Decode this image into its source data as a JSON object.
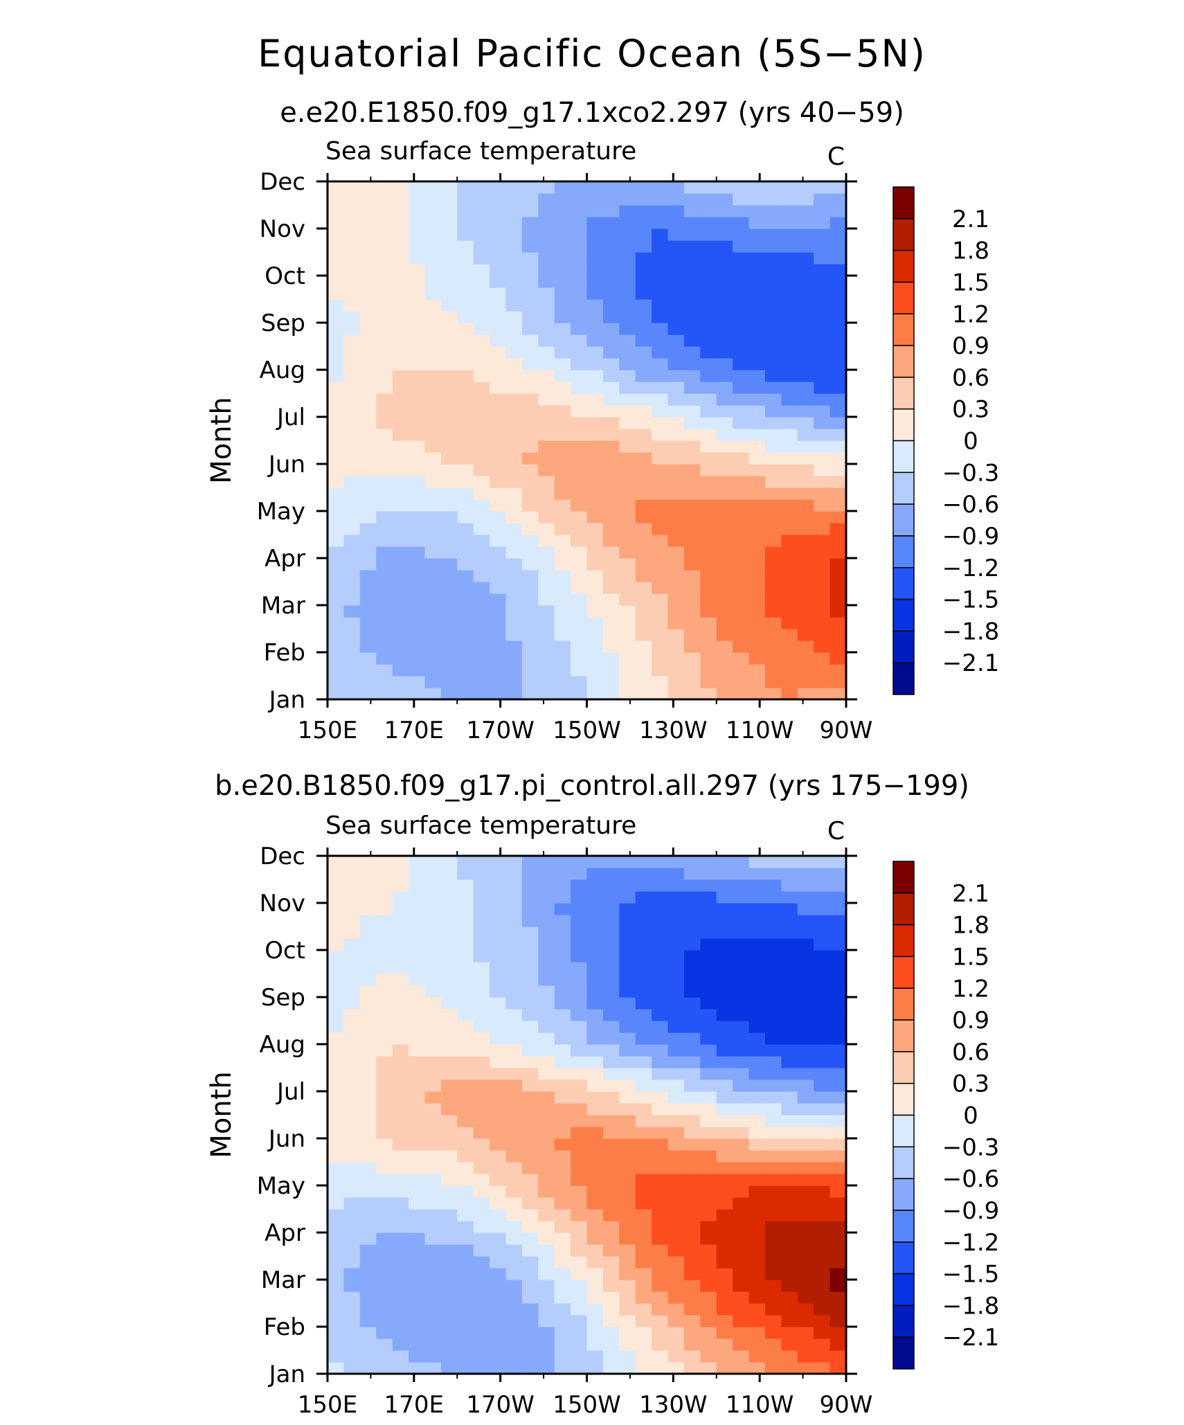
{
  "title": "Equatorial Pacific Ocean (5S−5N)",
  "chart_data": [
    {
      "type": "heatmap",
      "subtitle": "e.e20.E1850.f09_g17.1xco2.297 (yrs 40−59)",
      "left_label": "Sea surface temperature",
      "right_label": "C",
      "ylabel": "Month",
      "xlabel": "",
      "x": [
        "150E",
        "170E",
        "170W",
        "150W",
        "130W",
        "110W",
        "90W"
      ],
      "y": [
        "Jan",
        "Feb",
        "Mar",
        "Apr",
        "May",
        "Jun",
        "Jul",
        "Aug",
        "Sep",
        "Oct",
        "Nov",
        "Dec"
      ],
      "z": [
        [
          -0.3,
          -0.45,
          -0.6,
          -0.6,
          -0.3,
          0.2,
          0.6,
          0.9,
          0.75
        ],
        [
          -0.45,
          -0.7,
          -0.8,
          -0.6,
          -0.2,
          0.3,
          0.8,
          1.0,
          1.3
        ],
        [
          -0.45,
          -0.9,
          -0.9,
          -0.5,
          0.0,
          0.5,
          1.0,
          1.3,
          1.6
        ],
        [
          -0.3,
          -0.7,
          -0.6,
          -0.3,
          0.3,
          0.8,
          1.0,
          1.3,
          1.6
        ],
        [
          -0.1,
          -0.3,
          -0.3,
          0.2,
          0.7,
          1.0,
          1.0,
          1.0,
          1.0
        ],
        [
          0.1,
          0.1,
          0.3,
          0.6,
          0.9,
          0.7,
          0.5,
          0.3,
          0.1
        ],
        [
          0.1,
          0.4,
          0.5,
          0.5,
          0.3,
          0.1,
          -0.3,
          -0.6,
          -0.9
        ],
        [
          -0.1,
          0.3,
          0.3,
          0.1,
          -0.3,
          -0.8,
          -1.1,
          -1.4,
          -1.5
        ],
        [
          -0.1,
          0.1,
          0.0,
          -0.3,
          -0.8,
          -1.2,
          -1.5,
          -1.5,
          -1.5
        ],
        [
          0.1,
          0.1,
          -0.1,
          -0.5,
          -0.9,
          -1.3,
          -1.5,
          -1.4,
          -1.3
        ],
        [
          0.1,
          0.1,
          -0.3,
          -0.6,
          -0.9,
          -1.2,
          -1.1,
          -0.9,
          -1.0
        ],
        [
          0.1,
          0.1,
          -0.3,
          -0.5,
          -0.7,
          -0.6,
          -0.4,
          -0.2,
          -0.5
        ]
      ],
      "levels": [
        -2.1,
        -1.8,
        -1.5,
        -1.2,
        -0.9,
        -0.6,
        -0.3,
        0,
        0.3,
        0.6,
        0.9,
        1.2,
        1.5,
        1.8,
        2.1
      ]
    },
    {
      "type": "heatmap",
      "subtitle": "b.e20.B1850.f09_g17.pi_control.all.297 (yrs 175−199)",
      "left_label": "Sea surface temperature",
      "right_label": "C",
      "ylabel": "Month",
      "xlabel": "",
      "x": [
        "150E",
        "170E",
        "170W",
        "150W",
        "130W",
        "110W",
        "90W"
      ],
      "y": [
        "Jan",
        "Feb",
        "Mar",
        "Apr",
        "May",
        "Jun",
        "Jul",
        "Aug",
        "Sep",
        "Oct",
        "Nov",
        "Dec"
      ],
      "z": [
        [
          -0.2,
          -0.45,
          -0.6,
          -0.75,
          -0.5,
          0.1,
          0.5,
          0.9,
          1.2
        ],
        [
          -0.4,
          -0.7,
          -0.9,
          -0.8,
          -0.3,
          0.4,
          1.0,
          1.4,
          1.8
        ],
        [
          -0.5,
          -0.9,
          -0.9,
          -0.6,
          0.1,
          0.9,
          1.4,
          1.9,
          2.2
        ],
        [
          -0.4,
          -0.6,
          -0.5,
          -0.1,
          0.6,
          1.2,
          1.6,
          1.9,
          2.0
        ],
        [
          -0.2,
          -0.2,
          0.0,
          0.5,
          1.0,
          1.3,
          1.4,
          1.5,
          1.4
        ],
        [
          0.1,
          0.4,
          0.5,
          0.8,
          1.0,
          0.9,
          0.6,
          0.3,
          0.2
        ],
        [
          0.1,
          0.4,
          0.8,
          0.7,
          0.4,
          0.0,
          -0.4,
          -0.7,
          -0.9
        ],
        [
          0.0,
          0.3,
          0.2,
          -0.1,
          -0.5,
          -0.9,
          -1.3,
          -1.5,
          -1.6
        ],
        [
          -0.1,
          0.1,
          -0.1,
          -0.4,
          -0.9,
          -1.4,
          -1.6,
          -1.7,
          -1.8
        ],
        [
          0.0,
          -0.1,
          -0.2,
          -0.5,
          -1.0,
          -1.4,
          -1.6,
          -1.6,
          -1.5
        ],
        [
          0.1,
          0.0,
          -0.2,
          -0.6,
          -1.1,
          -1.3,
          -1.3,
          -1.2,
          -1.0
        ],
        [
          0.1,
          0.1,
          -0.3,
          -0.6,
          -0.8,
          -0.7,
          -0.6,
          -0.4,
          -0.5
        ]
      ],
      "levels": [
        -2.1,
        -1.8,
        -1.5,
        -1.2,
        -0.9,
        -0.6,
        -0.3,
        0,
        0.3,
        0.6,
        0.9,
        1.2,
        1.5,
        1.8,
        2.1
      ]
    }
  ],
  "colorbar": {
    "labels": [
      "2.1",
      "1.8",
      "1.5",
      "1.2",
      "0.9",
      "0.6",
      "0.3",
      "0",
      "−0.3",
      "−0.6",
      "−0.9",
      "−1.2",
      "−1.5",
      "−1.8",
      "−2.1"
    ],
    "colors": [
      "#7b0000",
      "#b21e00",
      "#dc2a00",
      "#fe4e1d",
      "#fd7d48",
      "#fda77f",
      "#fccdb2",
      "#fde9da",
      "#d9eafd",
      "#b4cdfc",
      "#87a9fc",
      "#5987fb",
      "#2456f7",
      "#0735e2",
      "#001ec0",
      "#000b8f"
    ]
  }
}
